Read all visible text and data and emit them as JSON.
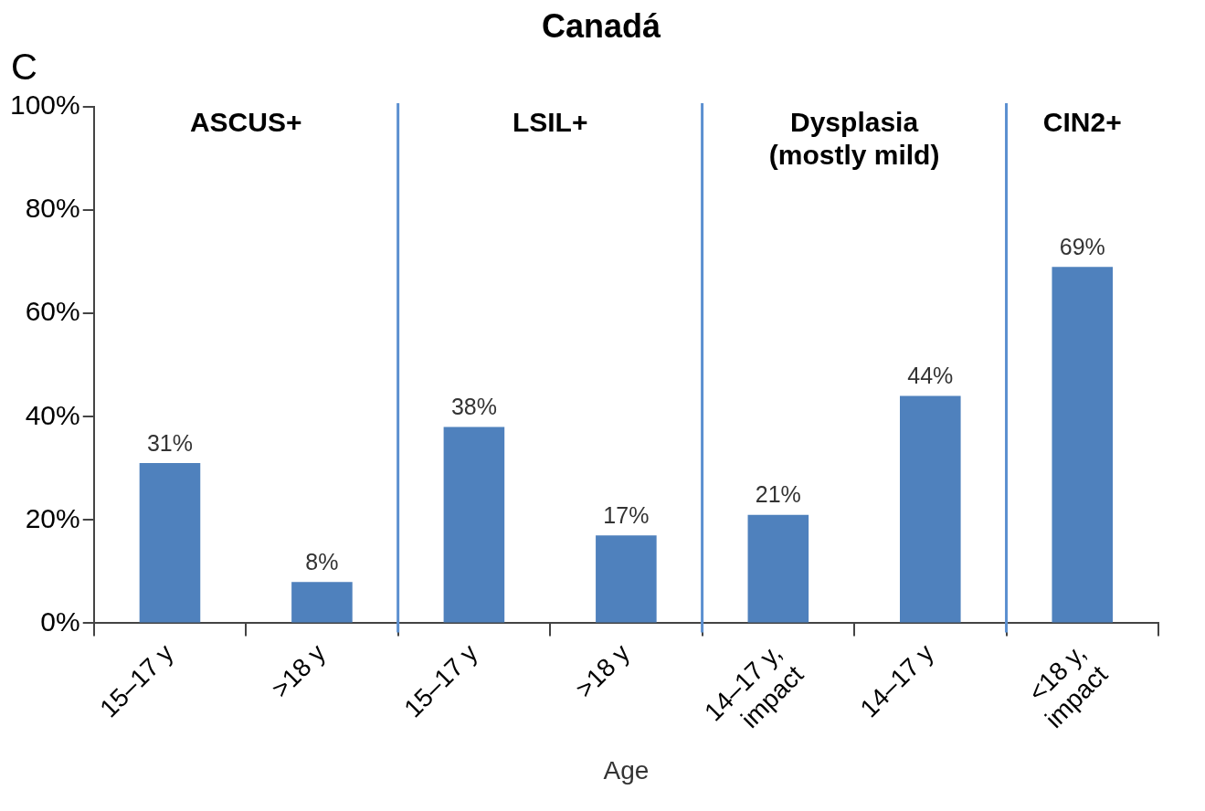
{
  "chart_data": {
    "type": "bar",
    "title": "Canadá",
    "subtitle": "C",
    "xlabel": "Age",
    "categories": [
      "15–17 y",
      ">18 y",
      "15–17 y",
      ">18 y",
      "14–17 y, impact",
      "14–17 y",
      "<18 y, impact"
    ],
    "values": [
      31,
      8,
      38,
      17,
      21,
      44,
      69
    ],
    "value_labels": [
      "31%",
      "8%",
      "38%",
      "17%",
      "21%",
      "44%",
      "69%"
    ],
    "color": "#4f81bd",
    "ylim": [
      0,
      100
    ],
    "yticks": [
      {
        "value": 0,
        "label": "0%"
      },
      {
        "value": 20,
        "label": "20%"
      },
      {
        "value": 40,
        "label": "40%"
      },
      {
        "value": 60,
        "label": "60%"
      },
      {
        "value": 80,
        "label": "80%"
      },
      {
        "value": 100,
        "label": "100%"
      }
    ],
    "annotations": [
      "ASCUS+",
      "LSIL+",
      "Dysplasia (mostly mild)",
      "CIN2+"
    ]
  }
}
